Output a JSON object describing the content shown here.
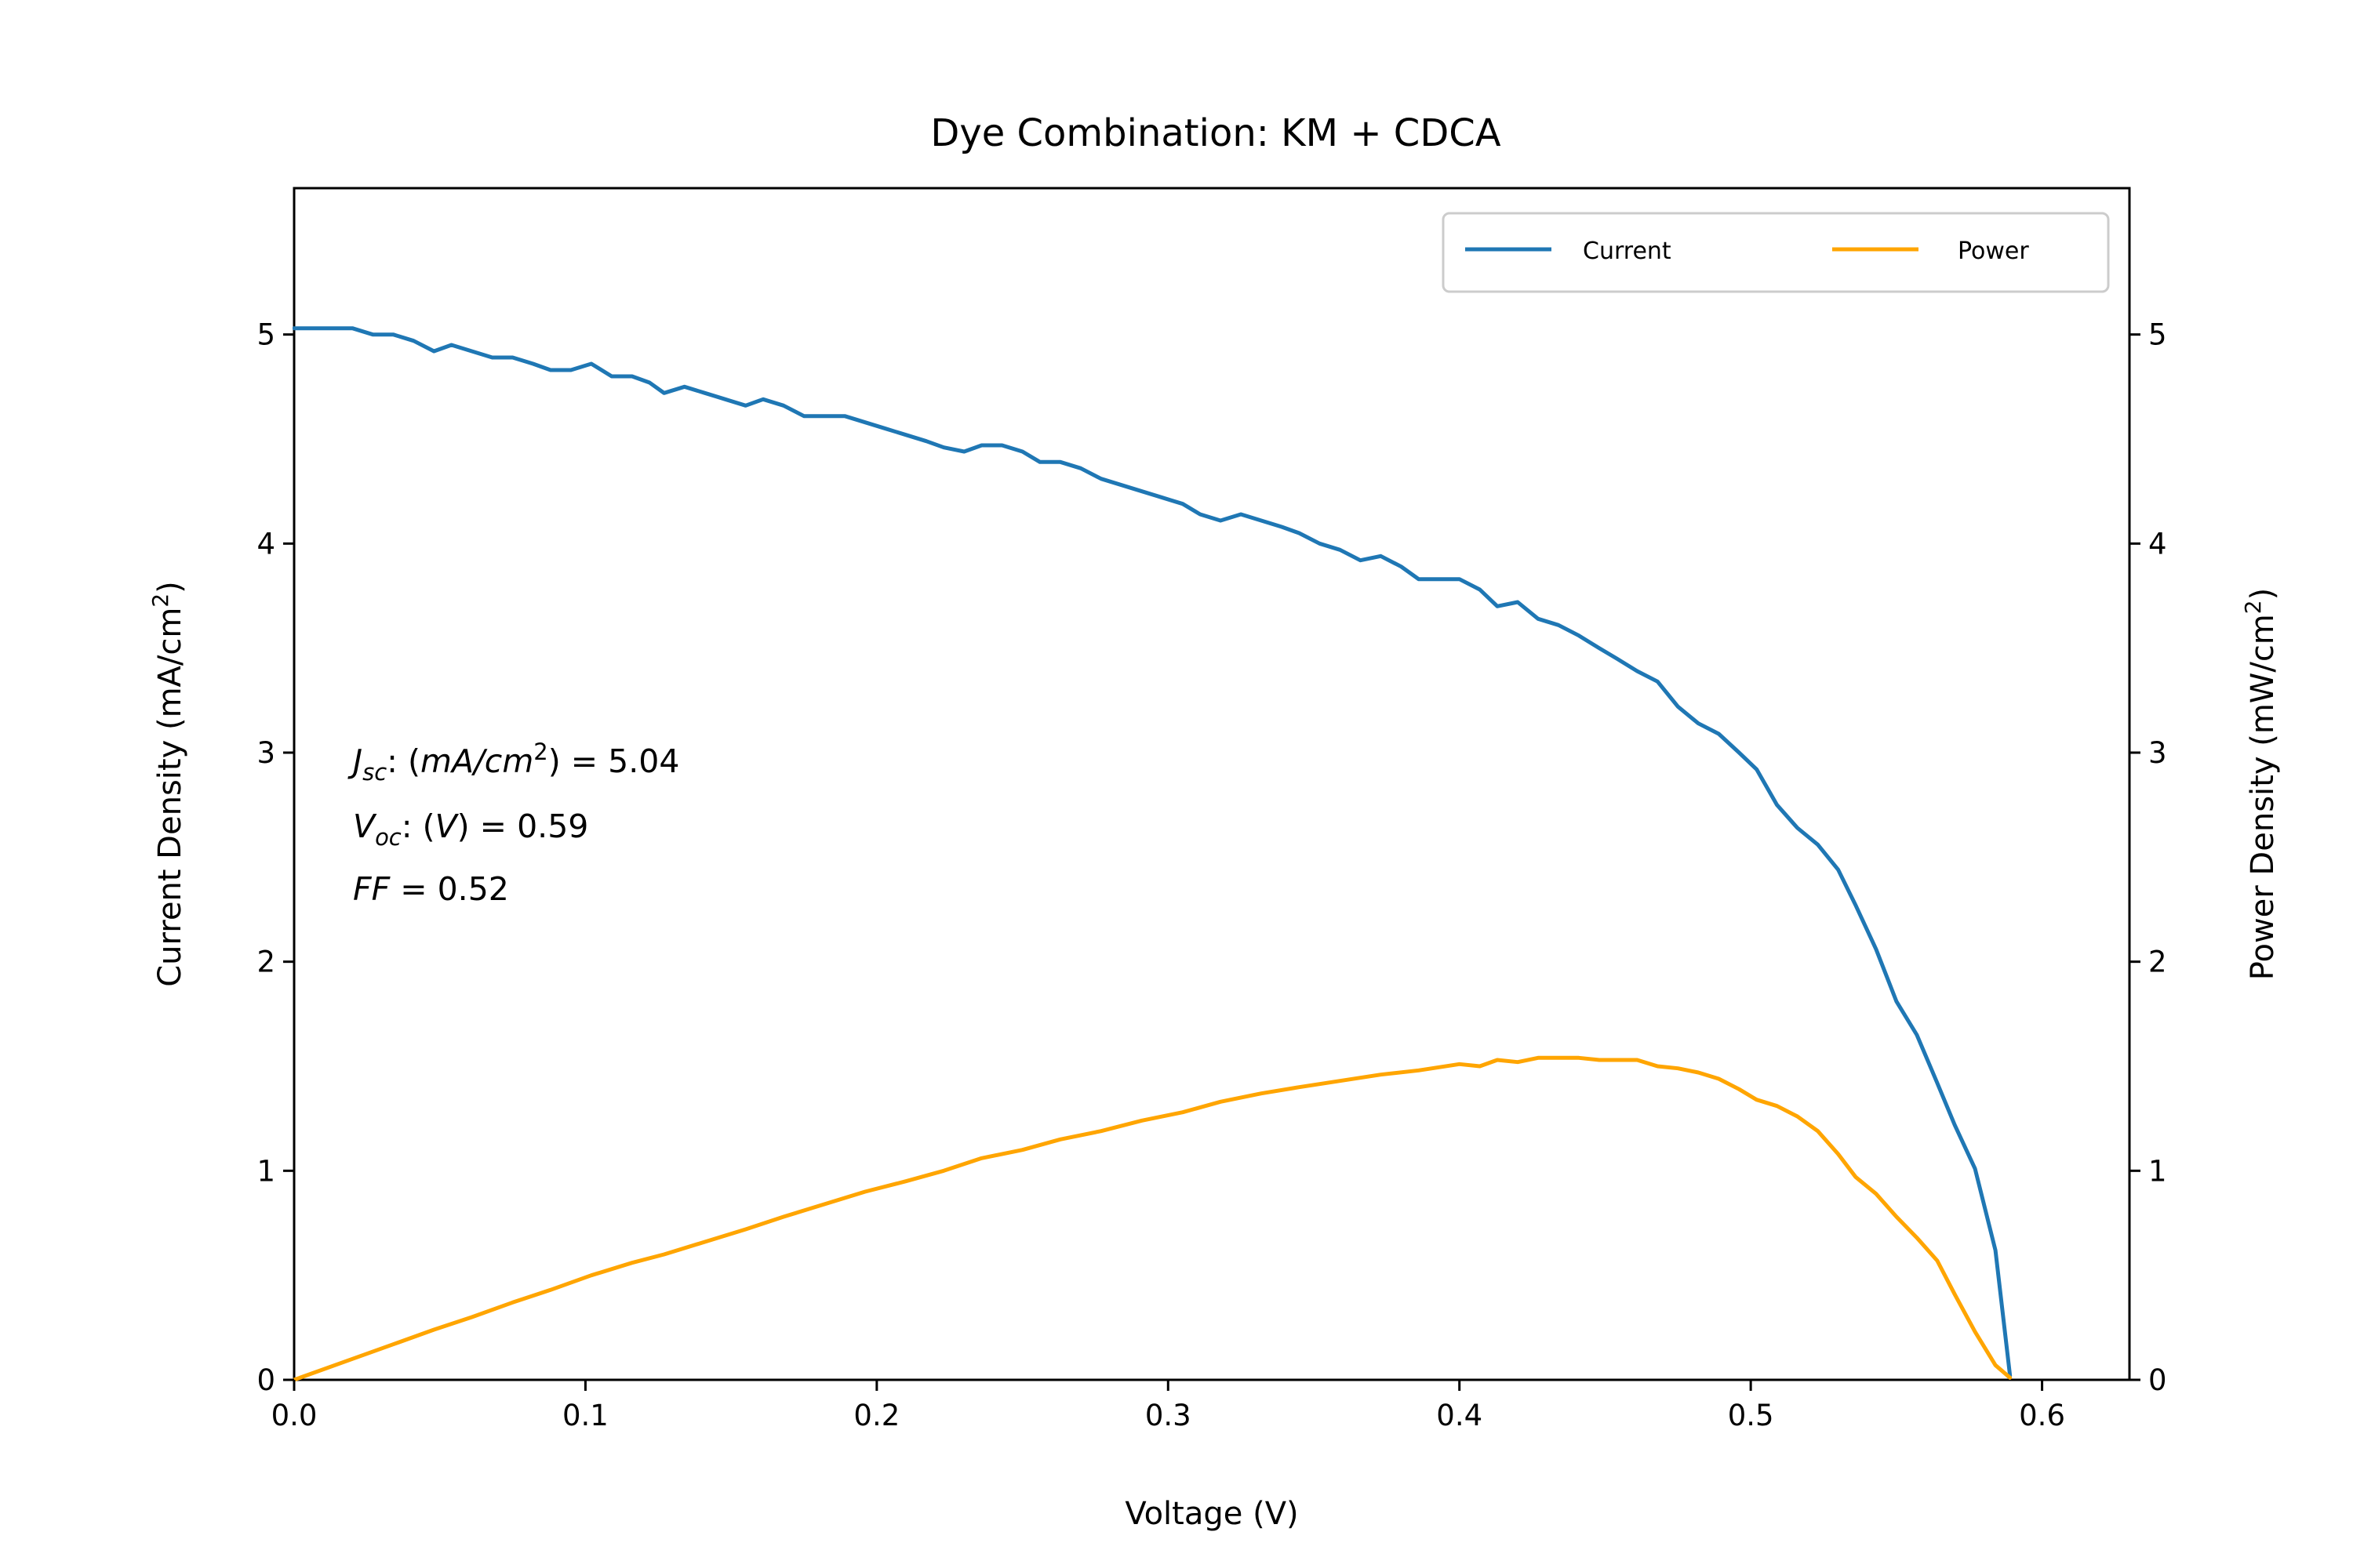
{
  "chart_data": {
    "type": "line",
    "title": "Dye Combination: KM + CDCA",
    "xlabel": "Voltage (V)",
    "ylabel_left": {
      "text": "Current Density (mA/cm",
      "sup": "2",
      "close": ")"
    },
    "ylabel_right": {
      "text": "Power Density (mW/cm",
      "sup": "2",
      "close": ")"
    },
    "xlim": [
      0.0,
      0.63
    ],
    "ylim": [
      0,
      5.7
    ],
    "x_ticks": [
      "0.0",
      "0.1",
      "0.2",
      "0.3",
      "0.4",
      "0.5",
      "0.6"
    ],
    "y_ticks": [
      "0",
      "1",
      "2",
      "3",
      "4",
      "5"
    ],
    "grid": false,
    "legend": {
      "placement": "top-right",
      "columns": 2
    },
    "annotation": {
      "line1": {
        "sym": "J",
        "sub": "sc",
        "mid": ": (",
        "unit": "mA/cm",
        "sup": "2",
        "tail": ") = 5.04"
      },
      "line2": {
        "sym": "V",
        "sub": "oc",
        "mid": ": (",
        "unit": "V",
        "tail": ") = 0.59"
      },
      "line3": {
        "sym": "FF",
        "tail": " = 0.52"
      }
    },
    "series": [
      {
        "name": "Current",
        "color": "#1f77b4",
        "axis": "left",
        "x": [
          0.0,
          0.02,
          0.027,
          0.034,
          0.041,
          0.048,
          0.054,
          0.061,
          0.068,
          0.075,
          0.082,
          0.088,
          0.095,
          0.102,
          0.109,
          0.116,
          0.122,
          0.127,
          0.134,
          0.141,
          0.148,
          0.155,
          0.161,
          0.168,
          0.175,
          0.182,
          0.189,
          0.196,
          0.203,
          0.21,
          0.217,
          0.223,
          0.23,
          0.236,
          0.243,
          0.25,
          0.256,
          0.263,
          0.27,
          0.277,
          0.284,
          0.291,
          0.298,
          0.305,
          0.311,
          0.318,
          0.325,
          0.332,
          0.339,
          0.345,
          0.352,
          0.359,
          0.366,
          0.373,
          0.38,
          0.386,
          0.393,
          0.4,
          0.407,
          0.413,
          0.42,
          0.427,
          0.434,
          0.441,
          0.448,
          0.454,
          0.461,
          0.468,
          0.475,
          0.482,
          0.489,
          0.496,
          0.502,
          0.509,
          0.516,
          0.523,
          0.53,
          0.536,
          0.543,
          0.55,
          0.557,
          0.564,
          0.57,
          0.577,
          0.584,
          0.589
        ],
        "y": [
          5.03,
          5.03,
          5.0,
          5.0,
          4.97,
          4.92,
          4.95,
          4.92,
          4.89,
          4.89,
          4.86,
          4.83,
          4.83,
          4.86,
          4.8,
          4.8,
          4.77,
          4.72,
          4.75,
          4.72,
          4.69,
          4.66,
          4.69,
          4.66,
          4.61,
          4.61,
          4.61,
          4.58,
          4.55,
          4.52,
          4.49,
          4.46,
          4.44,
          4.47,
          4.47,
          4.44,
          4.39,
          4.39,
          4.36,
          4.31,
          4.28,
          4.25,
          4.22,
          4.19,
          4.14,
          4.11,
          4.14,
          4.11,
          4.08,
          4.05,
          4.0,
          3.97,
          3.92,
          3.94,
          3.89,
          3.83,
          3.83,
          3.83,
          3.78,
          3.7,
          3.72,
          3.64,
          3.61,
          3.56,
          3.5,
          3.45,
          3.39,
          3.34,
          3.22,
          3.14,
          3.09,
          3.0,
          2.92,
          2.75,
          2.64,
          2.56,
          2.44,
          2.27,
          2.06,
          1.81,
          1.65,
          1.42,
          1.22,
          1.01,
          0.62,
          0.02
        ]
      },
      {
        "name": "Power",
        "color": "#ffa500",
        "axis": "right",
        "x": [
          0.0,
          0.02,
          0.034,
          0.048,
          0.061,
          0.075,
          0.088,
          0.102,
          0.116,
          0.127,
          0.141,
          0.155,
          0.168,
          0.182,
          0.196,
          0.21,
          0.223,
          0.236,
          0.25,
          0.263,
          0.277,
          0.291,
          0.305,
          0.318,
          0.332,
          0.345,
          0.359,
          0.373,
          0.386,
          0.4,
          0.407,
          0.413,
          0.42,
          0.427,
          0.434,
          0.441,
          0.448,
          0.454,
          0.461,
          0.468,
          0.475,
          0.482,
          0.489,
          0.496,
          0.502,
          0.509,
          0.516,
          0.523,
          0.53,
          0.536,
          0.543,
          0.55,
          0.557,
          0.564,
          0.57,
          0.577,
          0.584,
          0.589
        ],
        "y": [
          0.0,
          0.1,
          0.17,
          0.24,
          0.3,
          0.37,
          0.43,
          0.5,
          0.56,
          0.6,
          0.66,
          0.72,
          0.78,
          0.84,
          0.9,
          0.95,
          1.0,
          1.06,
          1.1,
          1.15,
          1.19,
          1.24,
          1.28,
          1.33,
          1.37,
          1.4,
          1.43,
          1.46,
          1.48,
          1.51,
          1.5,
          1.53,
          1.52,
          1.54,
          1.54,
          1.54,
          1.53,
          1.53,
          1.53,
          1.5,
          1.49,
          1.47,
          1.44,
          1.39,
          1.34,
          1.31,
          1.26,
          1.19,
          1.08,
          0.97,
          0.89,
          0.78,
          0.68,
          0.57,
          0.41,
          0.23,
          0.07,
          0.01
        ]
      }
    ]
  }
}
